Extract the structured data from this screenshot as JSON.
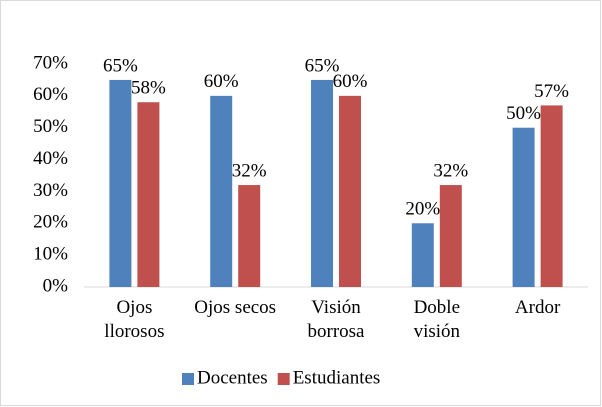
{
  "chart_data": {
    "type": "bar",
    "categories": [
      "Ojos llorosos",
      "Ojos secos",
      "Visión borrosa",
      "Doble visión",
      "Ardor"
    ],
    "series": [
      {
        "name": "Docentes",
        "color": "#4f81bd",
        "values": [
          65,
          60,
          65,
          20,
          50
        ],
        "value_labels": [
          "65%",
          "60%",
          "65%",
          "20%",
          "50%"
        ]
      },
      {
        "name": "Estudiantes",
        "color": "#c0504d",
        "values": [
          58,
          32,
          60,
          32,
          57
        ],
        "value_labels": [
          "58%",
          "32%",
          "60%",
          "32%",
          "57%"
        ]
      }
    ],
    "ylim": [
      0,
      70
    ],
    "yticks": [
      {
        "value": 0,
        "label": "0%"
      },
      {
        "value": 10,
        "label": "10%"
      },
      {
        "value": 20,
        "label": "20%"
      },
      {
        "value": 30,
        "label": "30%"
      },
      {
        "value": 40,
        "label": "40%"
      },
      {
        "value": 50,
        "label": "50%"
      },
      {
        "value": 60,
        "label": "60%"
      },
      {
        "value": 70,
        "label": "70%"
      }
    ],
    "grid": false,
    "legend": "bottom"
  }
}
